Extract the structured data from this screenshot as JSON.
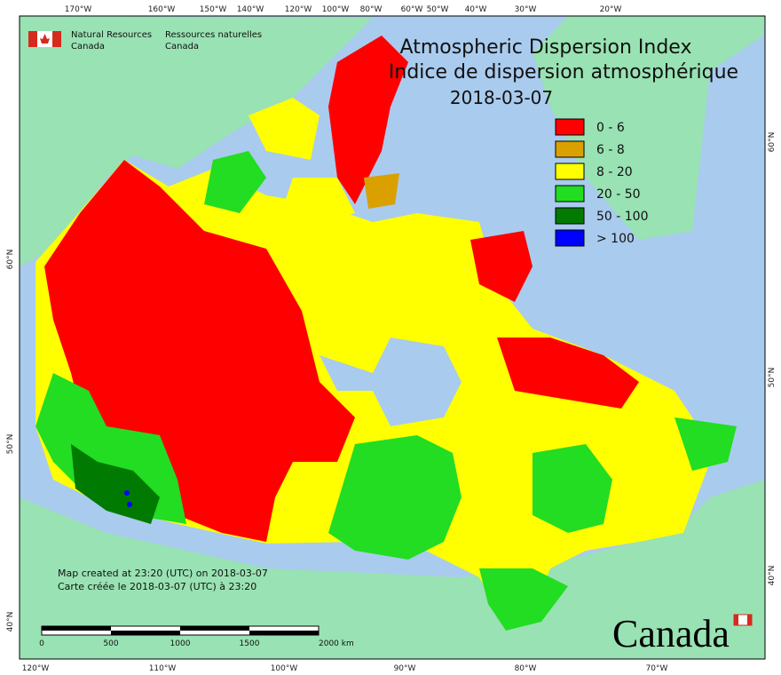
{
  "header": {
    "agency_en": "Natural Resources",
    "agency_en2": "Canada",
    "agency_fr": "Ressources naturelles",
    "agency_fr2": "Canada"
  },
  "title": {
    "line1": "Atmospheric Dispersion Index",
    "line2": "Indice de dispersion atmosphérique",
    "date": "2018-03-07"
  },
  "legend": [
    {
      "label": "0 - 6",
      "color": "#ff0000"
    },
    {
      "label": "6 - 8",
      "color": "#d9a000"
    },
    {
      "label": "8 - 20",
      "color": "#ffff00"
    },
    {
      "label": "20 - 50",
      "color": "#22dd22"
    },
    {
      "label": "50 - 100",
      "color": "#007a00"
    },
    {
      "label": "> 100",
      "color": "#0000ff"
    }
  ],
  "axes": {
    "top": [
      "170°W",
      "160°W",
      "150°W",
      "140°W",
      "120°W",
      "100°W",
      "80°W",
      "60°W",
      "50°W",
      "40°W",
      "30°W",
      "20°W"
    ],
    "bottom": [
      "120°W",
      "110°W",
      "100°W",
      "90°W",
      "80°W",
      "70°W"
    ],
    "left": [
      "60°N",
      "50°N",
      "40°N"
    ],
    "right": [
      "60°N",
      "50°N",
      "40°N"
    ]
  },
  "credits": [
    "Map created at 23:20 (UTC) on 2018-03-07",
    "Carte créée le 2018-03-07 (UTC) à 23:20"
  ],
  "scale_bar": [
    "0",
    "500",
    "1000",
    "1500",
    "2000 km"
  ],
  "wordmark": "Canada"
}
